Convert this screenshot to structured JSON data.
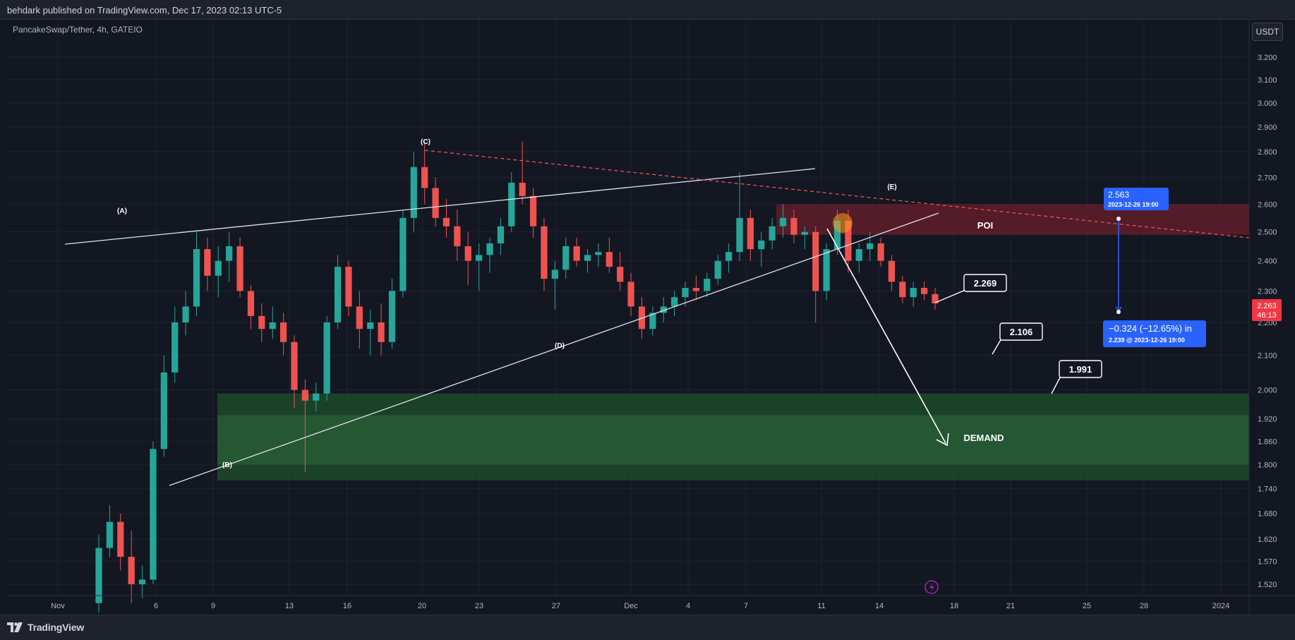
{
  "header": {
    "published": "behdark published on TradingView.com, Dec 17, 2023 02:13 UTC-5"
  },
  "symbol_line": "PancakeSwap/Tether, 4h, GATEIO",
  "currency_button": "USDT",
  "footer": {
    "brand": "TradingView",
    "logo_icon": "tradingview-logo-icon"
  },
  "colors": {
    "background": "#131722",
    "up": "#26a69a",
    "down": "#ef5350",
    "poi_zone": "#6b1e2b",
    "demand_zone": "#1e4d2b",
    "measure": "#2962ff"
  },
  "chart_data": {
    "type": "candlestick",
    "price_axis": {
      "labels": [
        "3.200",
        "3.100",
        "3.000",
        "2.900",
        "2.800",
        "2.700",
        "2.600",
        "2.500",
        "2.400",
        "2.300",
        "2.200",
        "2.100",
        "2.000",
        "1.920",
        "1.860",
        "1.800",
        "1.740",
        "1.680",
        "1.620",
        "1.570",
        "1.520"
      ],
      "values": [
        3.2,
        3.1,
        3.0,
        2.9,
        2.8,
        2.7,
        2.6,
        2.5,
        2.4,
        2.3,
        2.2,
        2.1,
        2.0,
        1.92,
        1.86,
        1.8,
        1.74,
        1.68,
        1.62,
        1.57,
        1.52
      ],
      "scale": "log"
    },
    "time_axis": {
      "labels": [
        "Nov",
        "6",
        "9",
        "13",
        "16",
        "20",
        "23",
        "27",
        "Dec",
        "4",
        "7",
        "11",
        "14",
        "18",
        "21",
        "25",
        "28",
        "2024"
      ]
    },
    "current_price": {
      "value": "2.263",
      "countdown": "46:13"
    },
    "wave_labels": [
      "(A)",
      "(B)",
      "(C)",
      "(D)",
      "(E)"
    ],
    "zones": [
      {
        "name": "POI",
        "label": "POI",
        "from": 2.49,
        "to": 2.6
      },
      {
        "name": "DEMAND",
        "label": "DEMAND",
        "from": 1.76,
        "to": 1.99
      }
    ],
    "targets": [
      "2.269",
      "2.106",
      "1.991"
    ],
    "measure": {
      "start_price": "2.563",
      "start_date": "2023-12-26 19:00",
      "change": "−0.324 (−12.65%) in",
      "end_price": "2.239",
      "end_date": "2023-12-26  19:00"
    },
    "candles": [
      [
        1.48,
        1.63,
        1.46,
        1.6
      ],
      [
        1.6,
        1.7,
        1.58,
        1.66
      ],
      [
        1.66,
        1.68,
        1.55,
        1.58
      ],
      [
        1.58,
        1.64,
        1.48,
        1.52
      ],
      [
        1.52,
        1.56,
        1.49,
        1.53
      ],
      [
        1.53,
        1.86,
        1.52,
        1.84
      ],
      [
        1.84,
        2.1,
        1.82,
        2.05
      ],
      [
        2.05,
        2.25,
        2.02,
        2.2
      ],
      [
        2.2,
        2.3,
        2.16,
        2.25
      ],
      [
        2.25,
        2.5,
        2.22,
        2.44
      ],
      [
        2.44,
        2.48,
        2.3,
        2.35
      ],
      [
        2.35,
        2.45,
        2.28,
        2.4
      ],
      [
        2.4,
        2.5,
        2.33,
        2.45
      ],
      [
        2.45,
        2.48,
        2.28,
        2.3
      ],
      [
        2.3,
        2.32,
        2.18,
        2.22
      ],
      [
        2.22,
        2.26,
        2.14,
        2.18
      ],
      [
        2.18,
        2.25,
        2.15,
        2.2
      ],
      [
        2.2,
        2.23,
        2.1,
        2.14
      ],
      [
        2.14,
        2.16,
        1.95,
        2.0
      ],
      [
        2.0,
        2.03,
        1.78,
        1.97
      ],
      [
        1.97,
        2.02,
        1.94,
        1.99
      ],
      [
        1.99,
        2.22,
        1.97,
        2.2
      ],
      [
        2.2,
        2.42,
        2.18,
        2.38
      ],
      [
        2.38,
        2.4,
        2.22,
        2.25
      ],
      [
        2.25,
        2.3,
        2.12,
        2.18
      ],
      [
        2.18,
        2.24,
        2.1,
        2.2
      ],
      [
        2.2,
        2.26,
        2.1,
        2.14
      ],
      [
        2.14,
        2.34,
        2.12,
        2.3
      ],
      [
        2.3,
        2.58,
        2.28,
        2.55
      ],
      [
        2.55,
        2.8,
        2.5,
        2.74
      ],
      [
        2.74,
        2.84,
        2.6,
        2.66
      ],
      [
        2.66,
        2.7,
        2.52,
        2.55
      ],
      [
        2.55,
        2.62,
        2.48,
        2.52
      ],
      [
        2.52,
        2.58,
        2.4,
        2.45
      ],
      [
        2.45,
        2.5,
        2.32,
        2.4
      ],
      [
        2.4,
        2.46,
        2.3,
        2.42
      ],
      [
        2.42,
        2.48,
        2.36,
        2.46
      ],
      [
        2.46,
        2.55,
        2.42,
        2.52
      ],
      [
        2.52,
        2.72,
        2.5,
        2.68
      ],
      [
        2.68,
        2.84,
        2.6,
        2.63
      ],
      [
        2.63,
        2.66,
        2.48,
        2.52
      ],
      [
        2.52,
        2.55,
        2.3,
        2.34
      ],
      [
        2.34,
        2.4,
        2.24,
        2.37
      ],
      [
        2.37,
        2.48,
        2.34,
        2.45
      ],
      [
        2.45,
        2.48,
        2.38,
        2.4
      ],
      [
        2.4,
        2.44,
        2.36,
        2.42
      ],
      [
        2.42,
        2.46,
        2.38,
        2.43
      ],
      [
        2.43,
        2.48,
        2.36,
        2.38
      ],
      [
        2.38,
        2.43,
        2.3,
        2.33
      ],
      [
        2.33,
        2.36,
        2.22,
        2.25
      ],
      [
        2.25,
        2.28,
        2.15,
        2.18
      ],
      [
        2.18,
        2.25,
        2.16,
        2.23
      ],
      [
        2.23,
        2.28,
        2.2,
        2.25
      ],
      [
        2.25,
        2.3,
        2.22,
        2.28
      ],
      [
        2.28,
        2.33,
        2.25,
        2.31
      ],
      [
        2.31,
        2.35,
        2.27,
        2.3
      ],
      [
        2.3,
        2.36,
        2.28,
        2.34
      ],
      [
        2.34,
        2.42,
        2.32,
        2.4
      ],
      [
        2.4,
        2.46,
        2.36,
        2.43
      ],
      [
        2.43,
        2.72,
        2.4,
        2.55
      ],
      [
        2.55,
        2.58,
        2.4,
        2.44
      ],
      [
        2.44,
        2.5,
        2.38,
        2.47
      ],
      [
        2.47,
        2.55,
        2.44,
        2.52
      ],
      [
        2.52,
        2.6,
        2.48,
        2.55
      ],
      [
        2.55,
        2.58,
        2.46,
        2.49
      ],
      [
        2.49,
        2.52,
        2.44,
        2.5
      ],
      [
        2.5,
        2.52,
        2.2,
        2.3
      ],
      [
        2.3,
        2.46,
        2.27,
        2.44
      ],
      [
        2.44,
        2.58,
        2.42,
        2.54
      ],
      [
        2.54,
        2.58,
        2.36,
        2.4
      ],
      [
        2.4,
        2.46,
        2.36,
        2.44
      ],
      [
        2.44,
        2.5,
        2.4,
        2.46
      ],
      [
        2.46,
        2.48,
        2.38,
        2.4
      ],
      [
        2.4,
        2.42,
        2.3,
        2.33
      ],
      [
        2.33,
        2.35,
        2.26,
        2.28
      ],
      [
        2.28,
        2.33,
        2.25,
        2.31
      ],
      [
        2.31,
        2.33,
        2.27,
        2.29
      ],
      [
        2.29,
        2.31,
        2.24,
        2.26
      ]
    ]
  }
}
